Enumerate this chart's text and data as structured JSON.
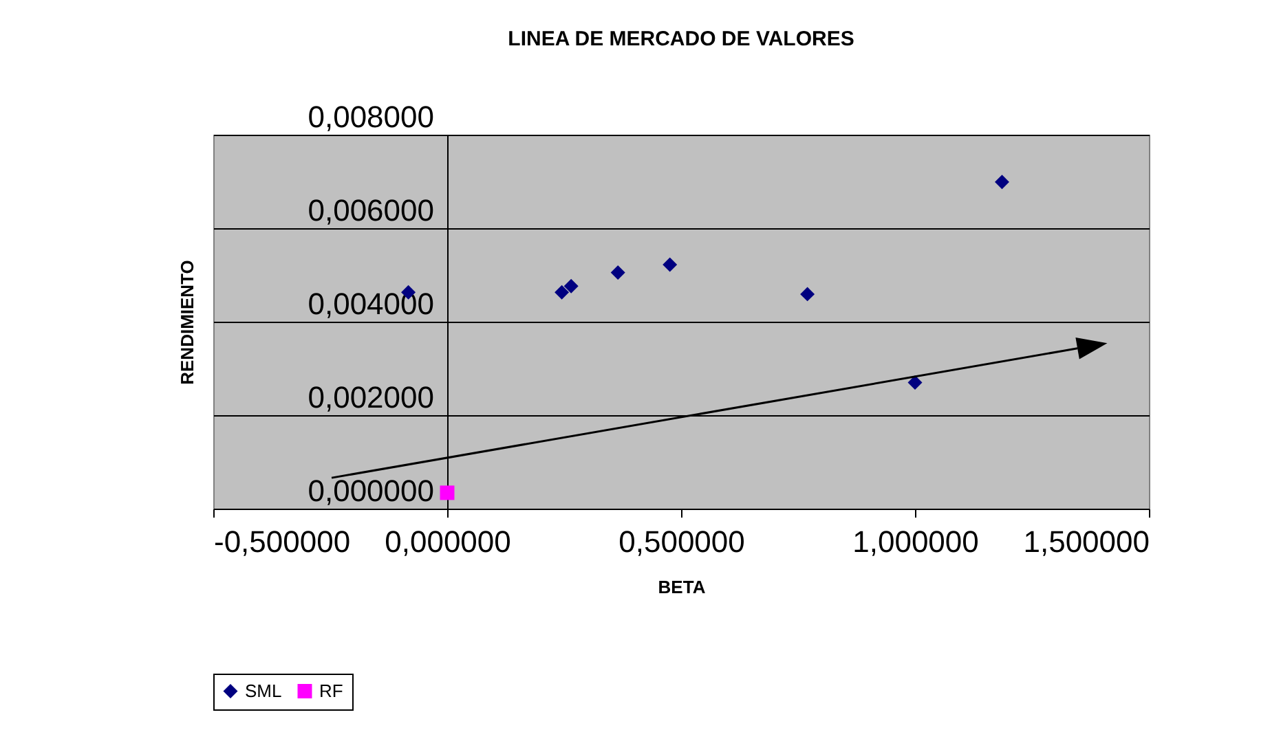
{
  "chart_data": {
    "type": "scatter",
    "title": "LINEA DE MERCADO DE VALORES",
    "xlabel": "BETA",
    "ylabel": "RENDIMIENTO",
    "series": [
      {
        "name": "SML",
        "color": "#000080",
        "marker": "diamond",
        "x": [
          -0.083,
          0.245,
          0.265,
          0.365,
          0.476,
          0.77,
          1.0,
          1.186
        ],
        "values": [
          0.00463,
          0.00463,
          0.00476,
          0.00505,
          0.00522,
          0.00459,
          0.0027,
          0.00699
        ]
      },
      {
        "name": "RF",
        "color": "#ff00ff",
        "marker": "square",
        "x": [
          0
        ],
        "values": [
          0.00034
        ]
      }
    ],
    "xlim": [
      -0.5,
      1.5
    ],
    "xticks": [
      {
        "value": -0.5,
        "label": "-0,500000"
      },
      {
        "value": 0,
        "label": "0,000000"
      },
      {
        "value": 0.5,
        "label": "0,500000"
      },
      {
        "value": 1,
        "label": "1,000000"
      },
      {
        "value": 1.5,
        "label": "1,500000"
      }
    ],
    "ylim": [
      0,
      0.008
    ],
    "yticks": [
      {
        "value": 0,
        "label": "0,000000"
      },
      {
        "value": 0.002,
        "label": "0,002000"
      },
      {
        "value": 0.004,
        "label": "0,004000"
      },
      {
        "value": 0.006,
        "label": "0,006000"
      },
      {
        "value": 0.008,
        "label": "0,008000"
      }
    ],
    "grid": "y",
    "legend": "bottom"
  }
}
